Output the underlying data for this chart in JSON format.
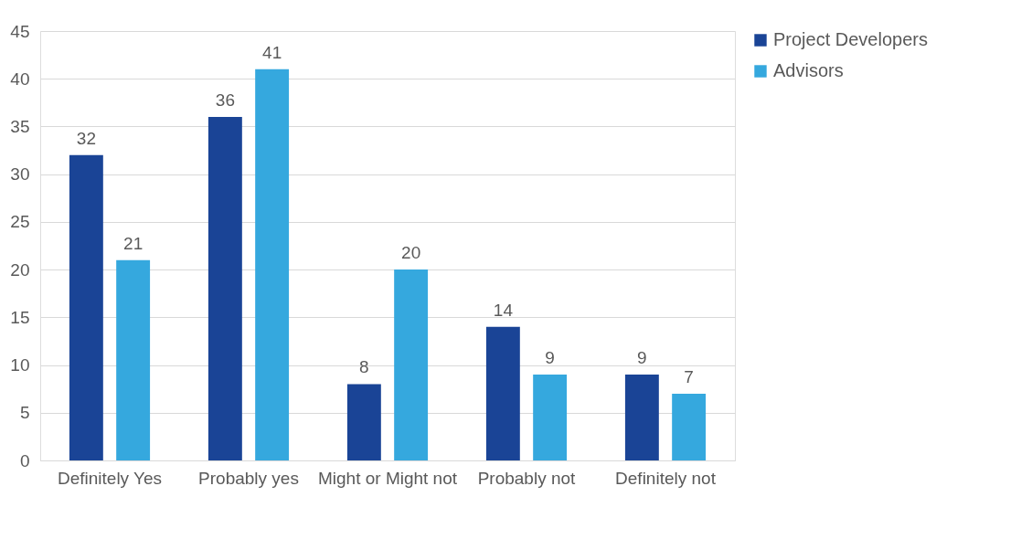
{
  "chart_data": {
    "type": "bar",
    "categories": [
      "Definitely Yes",
      "Probably yes",
      "Might or Might not",
      "Probably not",
      "Definitely not"
    ],
    "series": [
      {
        "name": "Project Developers",
        "color": "#1a4496",
        "values": [
          32,
          36,
          8,
          14,
          9
        ]
      },
      {
        "name": "Advisors",
        "color": "#35a8de",
        "values": [
          21,
          41,
          20,
          9,
          7
        ]
      }
    ],
    "ylim": [
      0,
      45
    ],
    "yticks": [
      0,
      5,
      10,
      15,
      20,
      25,
      30,
      35,
      40,
      45
    ],
    "grid": "y",
    "legend": "right",
    "data_labels": true
  }
}
